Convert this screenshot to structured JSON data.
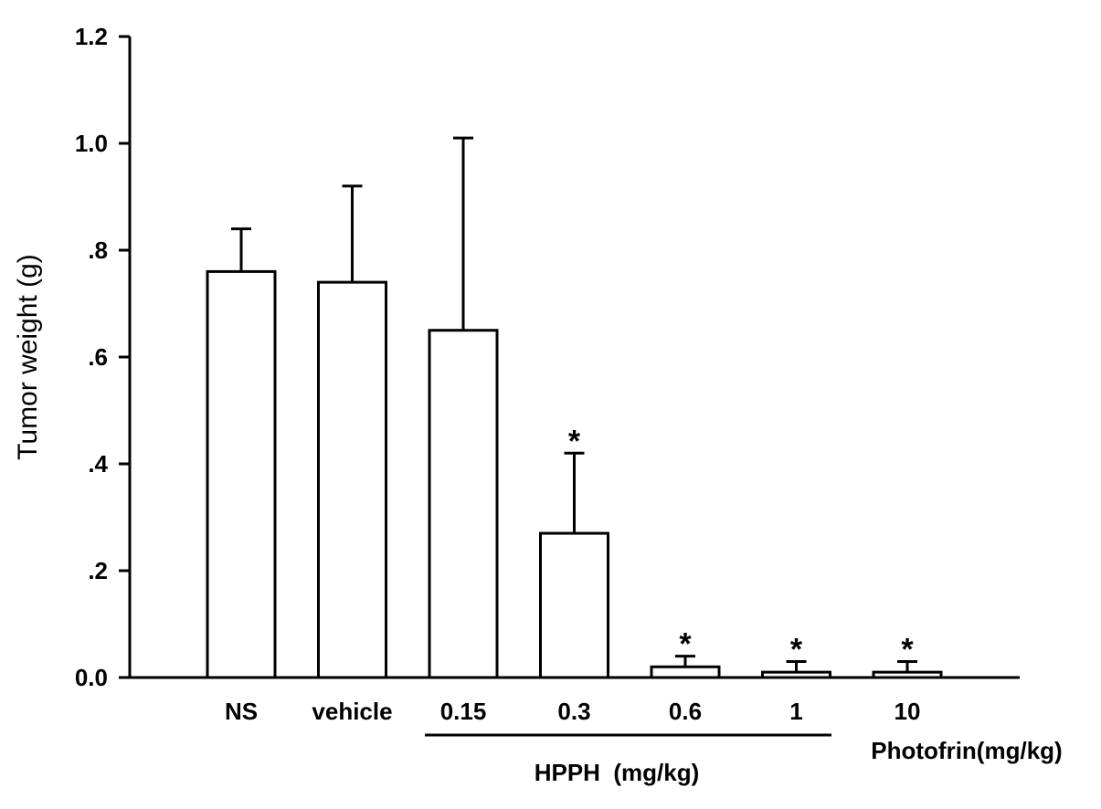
{
  "chart_data": {
    "type": "bar",
    "title": "",
    "xlabel": "",
    "ylabel": "Tumor weight (g)",
    "ylim": [
      0,
      1.2
    ],
    "yticks": [
      0,
      0.2,
      0.4,
      0.6,
      0.8,
      1.0,
      1.2
    ],
    "ytick_labels": [
      "0.0",
      ".2",
      ".4",
      ".6",
      ".8",
      "1.0",
      "1.2"
    ],
    "categories": [
      "NS",
      "vehicle",
      "0.15",
      "0.3",
      "0.6",
      "1",
      "10"
    ],
    "values": [
      0.76,
      0.74,
      0.65,
      0.27,
      0.02,
      0.01,
      0.01
    ],
    "error_upper": [
      0.08,
      0.18,
      0.36,
      0.15,
      0.02,
      0.02,
      0.02
    ],
    "significance": [
      "",
      "",
      "",
      "*",
      "*",
      "*",
      "*"
    ],
    "grid": false,
    "bar_fill": "#ffffff",
    "bar_stroke": "#000000",
    "group_labels": {
      "hpph": "HPPH  (mg/kg)",
      "photofrin": "Photofrin(mg/kg)"
    }
  }
}
